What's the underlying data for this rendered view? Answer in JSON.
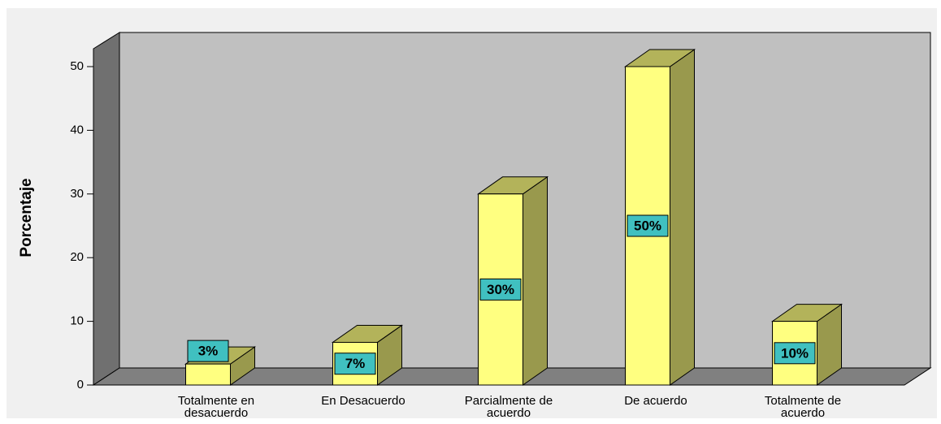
{
  "chart_data": {
    "type": "bar3d",
    "y_label": "Porcentaje",
    "categories": [
      "Totalmente en desacuerdo",
      "En Desacuerdo",
      "Parcialmente de acuerdo",
      "De acuerdo",
      "Totalmente de acuerdo"
    ],
    "values": [
      3.3,
      6.7,
      30,
      50,
      10
    ],
    "value_labels": [
      "3%",
      "7%",
      "30%",
      "50%",
      "10%"
    ],
    "color": "#ffff80",
    "ylim": [
      0,
      50
    ],
    "yticks": [
      0,
      10,
      20,
      30,
      40,
      50
    ]
  }
}
